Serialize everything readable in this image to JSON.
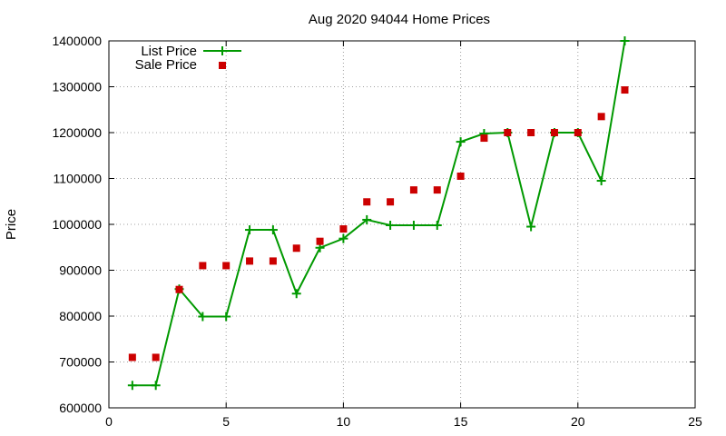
{
  "chart_data": {
    "type": "line",
    "title": "Aug 2020 94044 Home Prices",
    "xlabel": "",
    "ylabel": "Price",
    "xlim": [
      0,
      25
    ],
    "ylim": [
      600000,
      1400000
    ],
    "xticks": [
      0,
      5,
      10,
      15,
      20,
      25
    ],
    "yticks": [
      600000,
      700000,
      800000,
      900000,
      1000000,
      1100000,
      1200000,
      1300000,
      1400000
    ],
    "grid": true,
    "legend_position": "top-left",
    "series": [
      {
        "name": "List Price",
        "kind": "line-with-plus-markers",
        "color": "#009900",
        "x": [
          1,
          2,
          3,
          4,
          5,
          6,
          7,
          8,
          9,
          10,
          11,
          12,
          13,
          14,
          15,
          16,
          17,
          18,
          19,
          20,
          21,
          22
        ],
        "y": [
          649000,
          649000,
          859000,
          799000,
          799000,
          988000,
          988000,
          849000,
          949000,
          969000,
          1010000,
          998000,
          998000,
          998000,
          1180000,
          1198000,
          1200000,
          995000,
          1200000,
          1200000,
          1095000,
          1400000
        ]
      },
      {
        "name": "Sale Price",
        "kind": "square-points",
        "color": "#cc0000",
        "x": [
          1,
          2,
          3,
          4,
          5,
          6,
          7,
          8,
          9,
          10,
          11,
          12,
          13,
          14,
          15,
          16,
          17,
          18,
          19,
          20,
          21,
          22
        ],
        "y": [
          710000,
          710000,
          858000,
          910000,
          910000,
          920000,
          920000,
          948000,
          963000,
          990000,
          1049000,
          1049000,
          1075000,
          1075000,
          1105000,
          1188000,
          1200000,
          1200000,
          1200000,
          1200000,
          1235000,
          1293000
        ]
      }
    ]
  }
}
